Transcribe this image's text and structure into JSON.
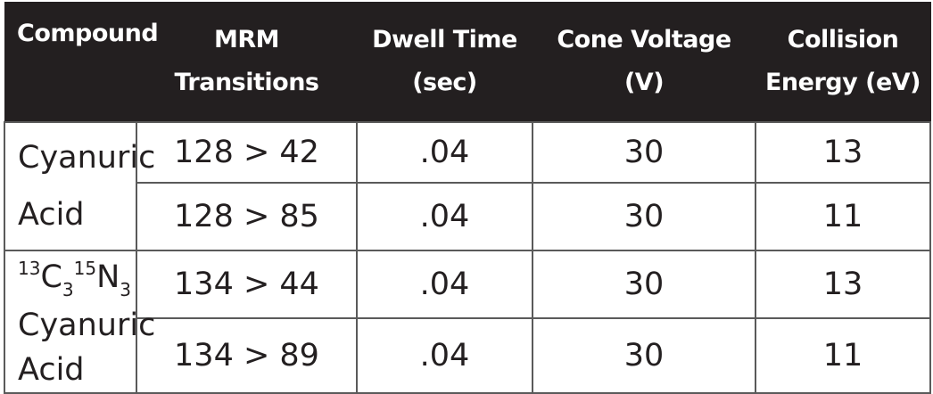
{
  "headers": [
    {
      "line1": "Compound",
      "line2": ""
    },
    {
      "line1": "MRM",
      "line2": "Transitions"
    },
    {
      "line1": "Dwell Time",
      "line2": "(sec)"
    },
    {
      "line1": "Cone Voltage",
      "line2": "(V)"
    },
    {
      "line1": "Collision",
      "line2": "Energy (eV)"
    }
  ],
  "groups": [
    {
      "compound_line1": "Cyanuric",
      "compound_line2": "Acid",
      "rows": [
        {
          "transition": "128 > 42",
          "dwell": ".04",
          "cone": "30",
          "collision": "13"
        },
        {
          "transition": "128 > 85",
          "dwell": ".04",
          "cone": "30",
          "collision": "11"
        }
      ]
    },
    {
      "isotope": {
        "mass_c": "13",
        "el_c": "C",
        "count_c": "3",
        "mass_n": "15",
        "el_n": "N",
        "count_n": "3"
      },
      "compound_line1": "Cyanuric",
      "compound_line2": "Acid",
      "rows": [
        {
          "transition": "134 > 44",
          "dwell": ".04",
          "cone": "30",
          "collision": "13"
        },
        {
          "transition": "134 > 89",
          "dwell": ".04",
          "cone": "30",
          "collision": "11"
        }
      ]
    }
  ]
}
